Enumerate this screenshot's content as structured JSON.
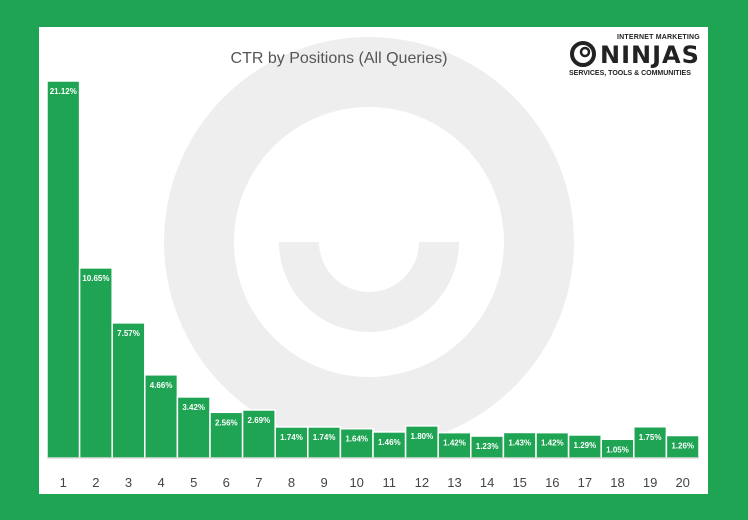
{
  "logo": {
    "line1": "INTERNET MARKETING",
    "line2": "NINJAS",
    "line3": "SERVICES, TOOLS & COMMUNITIES",
    "icon": "swirl-o-icon"
  },
  "colors": {
    "bar": "#1ea453",
    "bar_edge": "#ffffff",
    "frame": "#1ea453",
    "watermark": "#eeeeee",
    "text": "#555555"
  },
  "chart_data": {
    "type": "bar",
    "title": "CTR by Positions (All Queries)",
    "xlabel": "",
    "ylabel": "",
    "categories": [
      "1",
      "2",
      "3",
      "4",
      "5",
      "6",
      "7",
      "8",
      "9",
      "10",
      "11",
      "12",
      "13",
      "14",
      "15",
      "16",
      "17",
      "18",
      "19",
      "20"
    ],
    "values": [
      21.12,
      10.65,
      7.57,
      4.66,
      3.42,
      2.56,
      2.69,
      1.74,
      1.74,
      1.64,
      1.46,
      1.8,
      1.42,
      1.23,
      1.43,
      1.42,
      1.29,
      1.05,
      1.75,
      1.26
    ],
    "value_labels": [
      "21.12%",
      "10.65%",
      "7.57%",
      "4.66%",
      "3.42%",
      "2.56%",
      "2.69%",
      "1.74%",
      "1.74%",
      "1.64%",
      "1.46%",
      "1.80%",
      "1.42%",
      "1.23%",
      "1.43%",
      "1.42%",
      "1.29%",
      "1.05%",
      "1.75%",
      "1.26%"
    ],
    "ylim": [
      0,
      21.12
    ],
    "grid": false,
    "legend": "none"
  }
}
